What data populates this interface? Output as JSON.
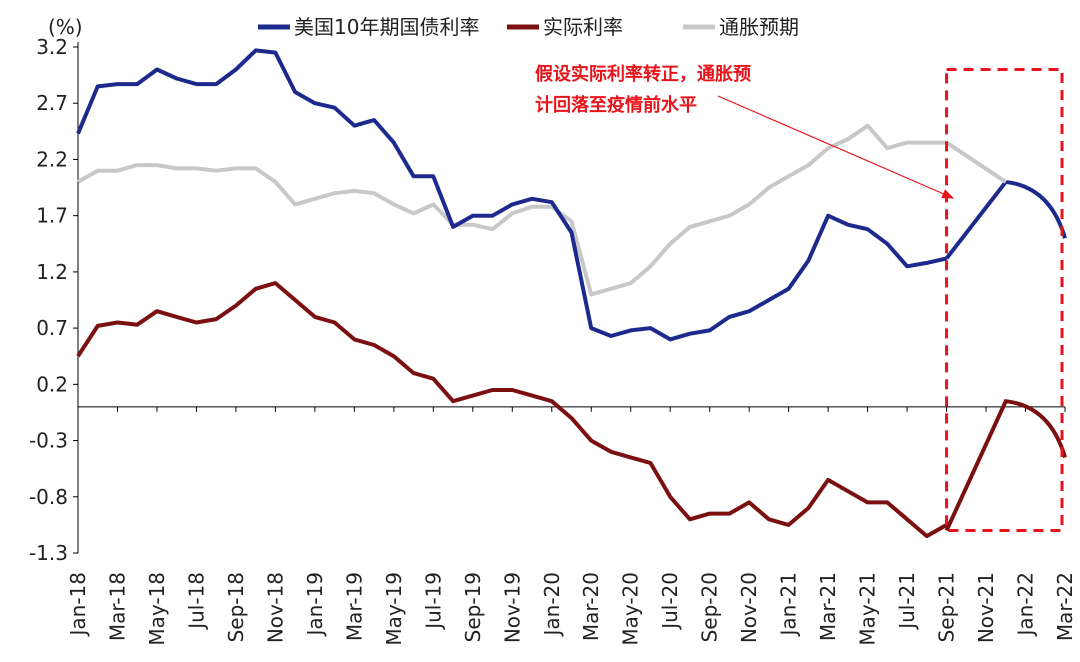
{
  "chart_data": {
    "type": "line",
    "ylabel": "(%)",
    "ylim": [
      -1.3,
      3.2
    ],
    "yticks": [
      "3.2",
      "2.7",
      "2.2",
      "1.7",
      "1.2",
      "0.7",
      "0.2",
      "-0.3",
      "-0.8",
      "-1.3"
    ],
    "ytick_values": [
      3.2,
      2.7,
      2.2,
      1.7,
      1.2,
      0.7,
      0.2,
      -0.3,
      -0.8,
      -1.3
    ],
    "xlim": [
      "2018-01",
      "2022-03"
    ],
    "xticks": [
      "Jan-18",
      "Mar-18",
      "May-18",
      "Jul-18",
      "Sep-18",
      "Nov-18",
      "Jan-19",
      "Mar-19",
      "May-19",
      "Jul-19",
      "Sep-19",
      "Nov-19",
      "Jan-20",
      "Mar-20",
      "May-20",
      "Jul-20",
      "Sep-20",
      "Nov-20",
      "Jan-21",
      "Mar-21",
      "May-21",
      "Jul-21",
      "Sep-21",
      "Nov-21",
      "Jan-22",
      "Mar-22"
    ],
    "legend_position": "top",
    "series": [
      {
        "name": "美国10年期国债利率",
        "color": "#1b2a8c",
        "x": [
          "2018-01",
          "2018-02",
          "2018-03",
          "2018-04",
          "2018-05",
          "2018-06",
          "2018-07",
          "2018-08",
          "2018-09",
          "2018-10",
          "2018-11",
          "2018-12",
          "2019-01",
          "2019-02",
          "2019-03",
          "2019-04",
          "2019-05",
          "2019-06",
          "2019-07",
          "2019-08",
          "2019-09",
          "2019-10",
          "2019-11",
          "2019-12",
          "2020-01",
          "2020-02",
          "2020-03",
          "2020-04",
          "2020-05",
          "2020-06",
          "2020-07",
          "2020-08",
          "2020-09",
          "2020-10",
          "2020-11",
          "2020-12",
          "2021-01",
          "2021-02",
          "2021-03",
          "2021-04",
          "2021-05",
          "2021-06",
          "2021-07",
          "2021-08",
          "2021-09"
        ],
        "values": [
          2.43,
          2.85,
          2.87,
          2.87,
          3.0,
          2.92,
          2.87,
          2.87,
          3.0,
          3.17,
          3.15,
          2.8,
          2.7,
          2.66,
          2.5,
          2.55,
          2.35,
          2.05,
          2.05,
          1.6,
          1.7,
          1.7,
          1.8,
          1.85,
          1.82,
          1.55,
          0.7,
          0.63,
          0.68,
          0.7,
          0.6,
          0.65,
          0.68,
          0.8,
          0.85,
          0.95,
          1.05,
          1.3,
          1.7,
          1.62,
          1.58,
          1.45,
          1.25,
          1.28,
          1.32
        ]
      },
      {
        "name": "实际利率",
        "color": "#7a1010",
        "x": [
          "2018-01",
          "2018-02",
          "2018-03",
          "2018-04",
          "2018-05",
          "2018-06",
          "2018-07",
          "2018-08",
          "2018-09",
          "2018-10",
          "2018-11",
          "2018-12",
          "2019-01",
          "2019-02",
          "2019-03",
          "2019-04",
          "2019-05",
          "2019-06",
          "2019-07",
          "2019-08",
          "2019-09",
          "2019-10",
          "2019-11",
          "2019-12",
          "2020-01",
          "2020-02",
          "2020-03",
          "2020-04",
          "2020-05",
          "2020-06",
          "2020-07",
          "2020-08",
          "2020-09",
          "2020-10",
          "2020-11",
          "2020-12",
          "2021-01",
          "2021-02",
          "2021-03",
          "2021-04",
          "2021-05",
          "2021-06",
          "2021-07",
          "2021-08",
          "2021-09"
        ],
        "values": [
          0.45,
          0.72,
          0.75,
          0.73,
          0.85,
          0.8,
          0.75,
          0.78,
          0.9,
          1.05,
          1.1,
          0.95,
          0.8,
          0.75,
          0.6,
          0.55,
          0.45,
          0.3,
          0.25,
          0.05,
          0.1,
          0.15,
          0.15,
          0.1,
          0.05,
          -0.1,
          -0.3,
          -0.4,
          -0.45,
          -0.5,
          -0.8,
          -1.0,
          -0.95,
          -0.95,
          -0.85,
          -1.0,
          -1.05,
          -0.9,
          -0.65,
          -0.75,
          -0.85,
          -0.85,
          -1.0,
          -1.15,
          -1.05
        ]
      },
      {
        "name": "通胀预期",
        "color": "#c8c8c8",
        "x": [
          "2018-01",
          "2018-02",
          "2018-03",
          "2018-04",
          "2018-05",
          "2018-06",
          "2018-07",
          "2018-08",
          "2018-09",
          "2018-10",
          "2018-11",
          "2018-12",
          "2019-01",
          "2019-02",
          "2019-03",
          "2019-04",
          "2019-05",
          "2019-06",
          "2019-07",
          "2019-08",
          "2019-09",
          "2019-10",
          "2019-11",
          "2019-12",
          "2020-01",
          "2020-02",
          "2020-03",
          "2020-04",
          "2020-05",
          "2020-06",
          "2020-07",
          "2020-08",
          "2020-09",
          "2020-10",
          "2020-11",
          "2020-12",
          "2021-01",
          "2021-02",
          "2021-03",
          "2021-04",
          "2021-05",
          "2021-06",
          "2021-07",
          "2021-08",
          "2021-09"
        ],
        "values": [
          2.0,
          2.1,
          2.1,
          2.15,
          2.15,
          2.12,
          2.12,
          2.1,
          2.12,
          2.12,
          2.0,
          1.8,
          1.85,
          1.9,
          1.92,
          1.9,
          1.8,
          1.72,
          1.8,
          1.62,
          1.62,
          1.58,
          1.72,
          1.78,
          1.78,
          1.65,
          1.0,
          1.05,
          1.1,
          1.25,
          1.45,
          1.6,
          1.65,
          1.7,
          1.8,
          1.95,
          2.05,
          2.15,
          2.3,
          2.38,
          2.5,
          2.3,
          2.35,
          2.35,
          2.35
        ]
      }
    ],
    "projections": [
      {
        "series": "美国10年期国债利率",
        "color": "#1b2a8c",
        "x": [
          "2021-09",
          "2021-12",
          "2022-03"
        ],
        "values": [
          1.32,
          2.0,
          1.5
        ]
      },
      {
        "series": "实际利率",
        "color": "#7a1010",
        "x": [
          "2021-09",
          "2021-12",
          "2022-03"
        ],
        "values": [
          -1.1,
          0.05,
          -0.45
        ]
      },
      {
        "series": "通胀预期",
        "color": "#c8c8c8",
        "x": [
          "2021-09",
          "2021-12"
        ],
        "values": [
          2.35,
          2.0
        ]
      }
    ],
    "annotation": {
      "lines": [
        "假设实际利率转正，通胀预",
        "计回落至疫情前水平"
      ],
      "color": "#e8141b"
    },
    "highlight_box": {
      "x_start": "2021-09",
      "x_end": "2022-03",
      "y_top": 3.0,
      "y_bottom": -1.1,
      "color": "#e8141b",
      "style": "dashed"
    },
    "grid": false
  }
}
